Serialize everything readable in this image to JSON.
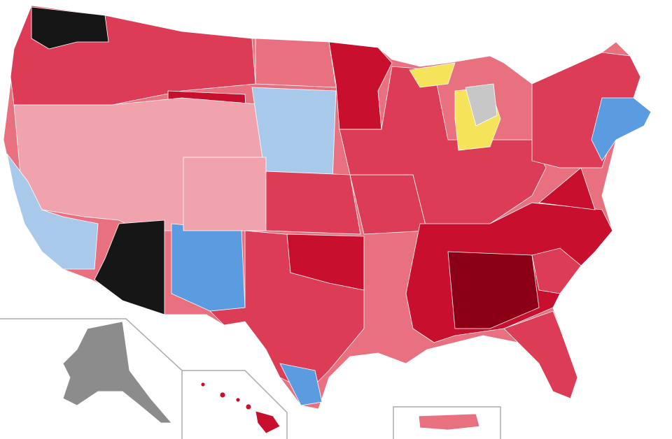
{
  "map": {
    "colors": {
      "strong_red": "#c8102e",
      "dark_red": "#8b0015",
      "mid_red": "#dc3c55",
      "light_red": "#e8707f",
      "pale_red": "#f0a3ad",
      "faint_red": "#f8cfd4",
      "light_blue": "#a9c9ea",
      "mid_blue": "#5b9be0",
      "strong_blue": "#2f6fc0",
      "black": "#161616",
      "dark_gray": "#444444",
      "gray": "#8c8c8c",
      "light_gray": "#c7c7c7",
      "yellow": "#f5e35a",
      "green": "#7fd17f",
      "purple": "#a08cc0",
      "inset_border": "#aaaaaa"
    }
  }
}
